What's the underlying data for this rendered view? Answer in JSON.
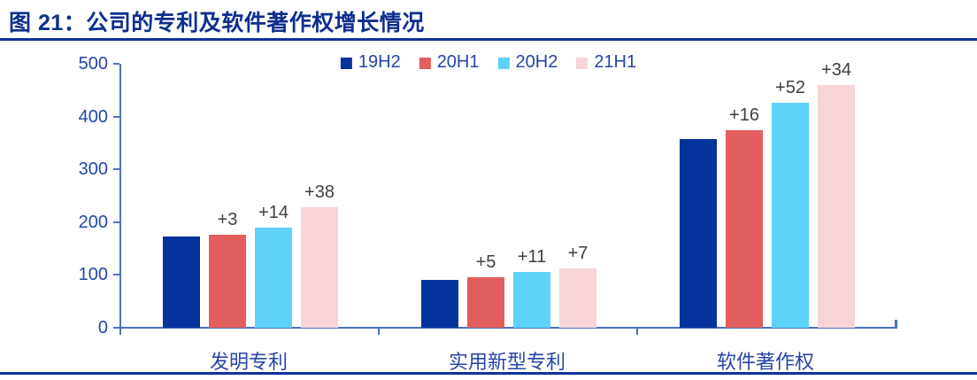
{
  "page": {
    "title": "图 21：公司的专利及软件著作权增长情况",
    "accent_color": "#10339C",
    "axis_color": "#4A74BC",
    "text_blue": "#2446A8",
    "data_label_color": "#3F3F3F"
  },
  "chart_data": {
    "type": "bar",
    "title": "图 21：公司的专利及软件著作权增长情况",
    "categories": [
      "发明专利",
      "实用新型专利",
      "软件著作权"
    ],
    "series": [
      {
        "name": "19H2",
        "color": "#04339B",
        "values": [
          173,
          90,
          358
        ],
        "labels": [
          "",
          "",
          ""
        ]
      },
      {
        "name": "20H1",
        "color": "#E25D5D",
        "values": [
          176,
          95,
          374
        ],
        "labels": [
          "+3",
          "+5",
          "+16"
        ]
      },
      {
        "name": "20H2",
        "color": "#5FD2F9",
        "values": [
          190,
          106,
          426
        ],
        "labels": [
          "+14",
          "+11",
          "+52"
        ]
      },
      {
        "name": "21H1",
        "color": "#F8D4D8",
        "values": [
          228,
          113,
          460
        ],
        "labels": [
          "+38",
          "+7",
          "+34"
        ]
      }
    ],
    "xlabel": "",
    "ylabel": "",
    "ylim": [
      0,
      500
    ],
    "yticks": [
      0,
      100,
      200,
      300,
      400,
      500
    ],
    "legend": [
      "19H2",
      "20H1",
      "20H2",
      "21H1"
    ],
    "legend_position": "top-center",
    "grid": false
  }
}
